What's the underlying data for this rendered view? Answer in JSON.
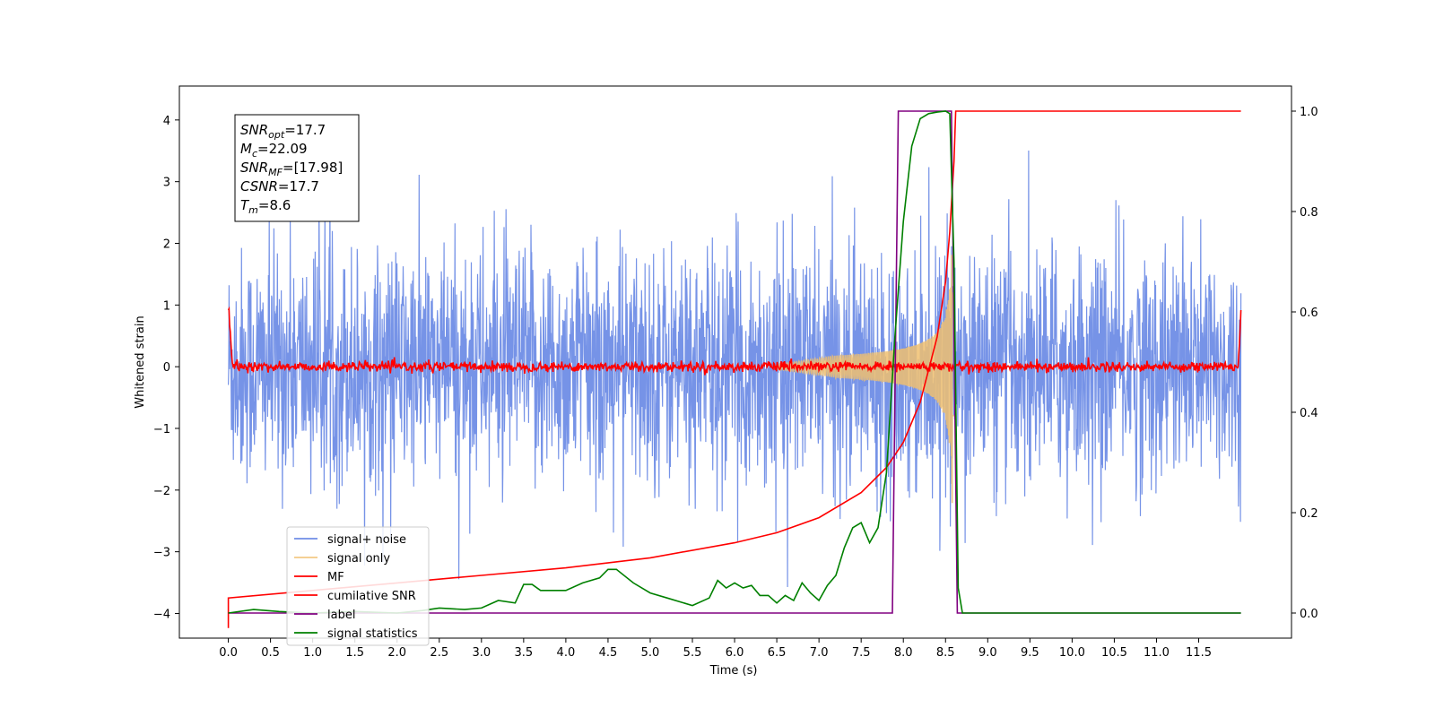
{
  "chart_data": {
    "type": "line",
    "xlabel": "Time (s)",
    "ylabel": "Whitened strain",
    "y2label": "",
    "xlim": [
      -0.58,
      12.6
    ],
    "ylim": [
      -4.4,
      4.55
    ],
    "y2lim": [
      -0.05,
      1.05
    ],
    "x_ticks": [
      0.0,
      0.5,
      1.0,
      1.5,
      2.0,
      2.5,
      3.0,
      3.5,
      4.0,
      4.5,
      5.0,
      5.5,
      6.0,
      6.5,
      7.0,
      7.5,
      8.0,
      8.5,
      9.0,
      9.5,
      10.0,
      10.5,
      11.0,
      11.5
    ],
    "x_tick_labels": [
      "0.0",
      "0.5",
      "1.0",
      "1.5",
      "2.0",
      "2.5",
      "3.0",
      "3.5",
      "4.0",
      "4.5",
      "5.0",
      "5.5",
      "6.0",
      "6.5",
      "7.0",
      "7.5",
      "8.0",
      "8.5",
      "9.0",
      "9.5",
      "10.0",
      "10.5",
      "11.0",
      "11.5"
    ],
    "y_ticks": [
      -4,
      -3,
      -2,
      -1,
      0,
      1,
      2,
      3,
      4
    ],
    "y_tick_labels": [
      "−4",
      "−3",
      "−2",
      "−1",
      "0",
      "1",
      "2",
      "3",
      "4"
    ],
    "y2_ticks": [
      0.0,
      0.2,
      0.4,
      0.6,
      0.8,
      1.0
    ],
    "y2_tick_labels": [
      "0.0",
      "0.2",
      "0.4",
      "0.6",
      "0.8",
      "1.0"
    ],
    "grid": false,
    "legend_position": "lower-left",
    "annotation": {
      "lines": [
        {
          "var": "SNR",
          "sub": "opt",
          "value": "=17.7"
        },
        {
          "var": "M",
          "sub": "c",
          "value": "=22.09"
        },
        {
          "var": "SNR",
          "sub": "MF",
          "value": "=[17.98]"
        },
        {
          "var": "CSNR",
          "sub": "",
          "value": "=17.7"
        },
        {
          "var": "T",
          "sub": "m",
          "value": "=8.6"
        }
      ]
    },
    "series": [
      {
        "name": "signal+ noise",
        "axis": "left",
        "color": "#6f8de6",
        "kind": "noise",
        "description_values": {
          "x_start": 0.0,
          "x_end": 12.0,
          "typical_envelope": 2.2,
          "peak_envelope": 3.6
        }
      },
      {
        "name": "signal only",
        "axis": "left",
        "color": "#f0c070",
        "kind": "chirp",
        "description_values": {
          "x_start": 6.5,
          "x_end": 8.6,
          "peak_amplitude": 2.3
        }
      },
      {
        "name": "MF",
        "axis": "left",
        "color": "#ff0000",
        "kind": "mf",
        "description_values": {
          "x_start": 0.0,
          "x_end": 12.0,
          "start_value": 1.0,
          "end_value": 0.9,
          "noise_amplitude": 0.08
        }
      },
      {
        "name": "cumilative SNR",
        "axis": "right",
        "color": "#ff0000",
        "x": [
          0.0,
          0.0,
          1.0,
          2.0,
          3.0,
          4.0,
          5.0,
          6.0,
          6.5,
          7.0,
          7.5,
          7.8,
          8.0,
          8.2,
          8.4,
          8.5,
          8.55,
          8.6,
          8.62,
          12.0
        ],
        "y": [
          -0.03,
          0.03,
          0.045,
          0.06,
          0.075,
          0.09,
          0.11,
          0.14,
          0.16,
          0.19,
          0.24,
          0.29,
          0.34,
          0.42,
          0.55,
          0.66,
          0.76,
          0.9,
          1.0,
          1.0
        ]
      },
      {
        "name": "label",
        "axis": "right",
        "color": "#800080",
        "x": [
          0.0,
          7.87,
          7.94,
          8.57,
          8.64,
          12.0
        ],
        "y": [
          0.0,
          0.0,
          1.0,
          1.0,
          0.0,
          0.0
        ]
      },
      {
        "name": "signal statistics",
        "axis": "right",
        "color": "#008000",
        "x": [
          0.0,
          0.3,
          0.6,
          1.0,
          1.5,
          2.0,
          2.3,
          2.5,
          2.8,
          3.0,
          3.2,
          3.4,
          3.5,
          3.6,
          3.7,
          4.0,
          4.2,
          4.4,
          4.5,
          4.6,
          4.8,
          5.0,
          5.2,
          5.5,
          5.7,
          5.8,
          5.9,
          6.0,
          6.1,
          6.2,
          6.3,
          6.4,
          6.5,
          6.6,
          6.7,
          6.8,
          6.9,
          7.0,
          7.1,
          7.2,
          7.3,
          7.4,
          7.5,
          7.6,
          7.7,
          7.8,
          7.9,
          8.0,
          8.1,
          8.2,
          8.3,
          8.4,
          8.5,
          8.55,
          8.6,
          8.65,
          8.7,
          12.0
        ],
        "y": [
          0.0,
          0.007,
          0.003,
          0.0,
          0.003,
          0.0,
          0.005,
          0.01,
          0.007,
          0.01,
          0.025,
          0.02,
          0.057,
          0.057,
          0.045,
          0.045,
          0.06,
          0.07,
          0.087,
          0.087,
          0.06,
          0.04,
          0.03,
          0.015,
          0.03,
          0.065,
          0.05,
          0.06,
          0.05,
          0.055,
          0.035,
          0.035,
          0.02,
          0.035,
          0.025,
          0.06,
          0.04,
          0.025,
          0.055,
          0.075,
          0.13,
          0.17,
          0.18,
          0.14,
          0.17,
          0.28,
          0.55,
          0.78,
          0.93,
          0.985,
          0.995,
          0.998,
          1.0,
          0.995,
          0.7,
          0.05,
          0.0,
          0.0
        ]
      }
    ]
  }
}
